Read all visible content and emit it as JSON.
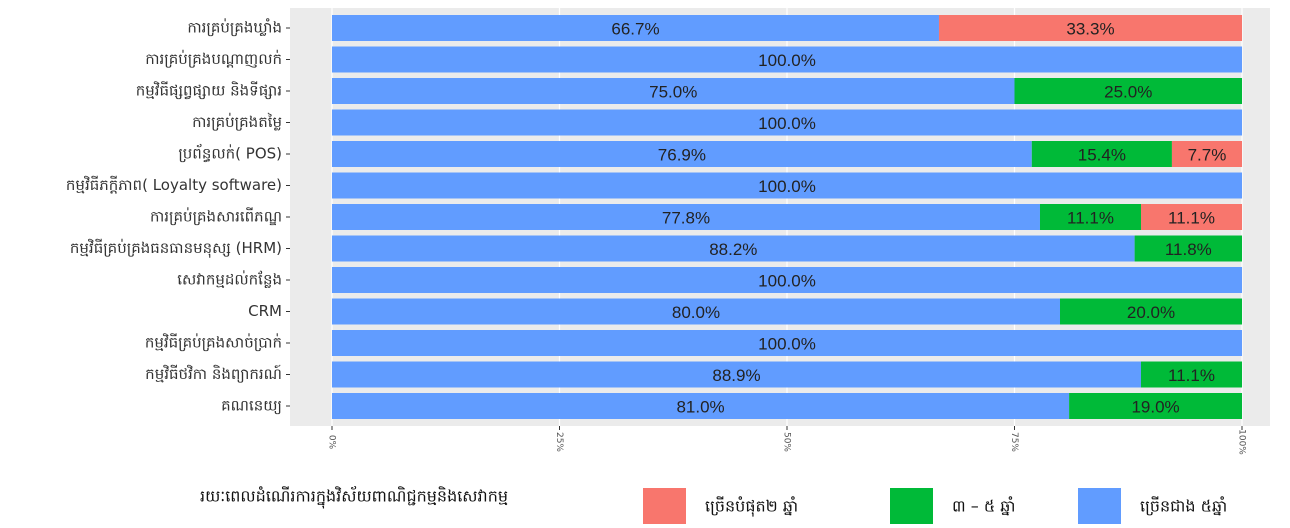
{
  "chart_data": {
    "type": "stacked-barh",
    "categories": [
      "ការគ្រប់គ្រងឃ្លាំង",
      "ការគ្រប់គ្រងបណ្តាញលក់",
      "កម្មវិធីផ្សព្វផ្សាយ និងទីផ្សារ",
      "ការគ្រប់គ្រងតម្លៃ",
      "ប្រព័ន្ធលក់( POS)",
      "កម្មវិធីភក្ដីភាព( Loyalty software)",
      "ការគ្រប់គ្រងសារពើភណ្ឌ",
      "កម្មវិធីគ្រប់គ្រងធនធានមនុស្ស (HRM)",
      "សេវាកម្មដល់កន្លែង",
      "CRM",
      "កម្មវិធីគ្រប់គ្រងសាច់ប្រាក់",
      "កម្មវិធីថវិកា និងព្យាករណ៍",
      "គណនេយ្យ"
    ],
    "legend_title": "រយៈពេលដំណើរការក្នុងវិស័យពាណិជ្ជកម្មនិងសេវាកម្ម",
    "series": [
      {
        "name": "ច្រើនបំផុត២ ឆ្នាំ",
        "color": "#F8766D",
        "values": [
          33.3,
          null,
          null,
          null,
          7.7,
          null,
          11.1,
          null,
          null,
          null,
          null,
          null,
          null
        ],
        "value_labels": [
          "33.3%",
          null,
          null,
          null,
          "7.7%",
          null,
          "11.1%",
          null,
          null,
          null,
          null,
          null,
          null
        ]
      },
      {
        "name": "៣ – ៥ ឆ្នាំ",
        "color": "#00BA38",
        "values": [
          null,
          null,
          25.0,
          null,
          15.4,
          null,
          11.1,
          11.8,
          null,
          20.0,
          null,
          11.1,
          19.0
        ],
        "value_labels": [
          null,
          null,
          "25.0%",
          null,
          "15.4%",
          null,
          "11.1%",
          "11.8%",
          null,
          "20.0%",
          null,
          "11.1%",
          "19.0%"
        ]
      },
      {
        "name": "ច្រើនជាង ៥ឆ្នាំ",
        "color": "#619CFF",
        "values": [
          66.7,
          100.0,
          75.0,
          100.0,
          76.9,
          100.0,
          77.8,
          88.2,
          100.0,
          80.0,
          100.0,
          88.9,
          81.0
        ],
        "value_labels": [
          "66.7%",
          "100.0%",
          "75.0%",
          "100.0%",
          "76.9%",
          "100.0%",
          "77.8%",
          "88.2%",
          "100.0%",
          "80.0%",
          "100.0%",
          "88.9%",
          "81.0%"
        ]
      }
    ],
    "stack_order": [
      2,
      1,
      0
    ],
    "xlim": [
      0,
      100
    ],
    "xticks": [
      {
        "value": 0,
        "label": "0%"
      },
      {
        "value": 25,
        "label": "25%"
      },
      {
        "value": 50,
        "label": "50%"
      },
      {
        "value": 75,
        "label": "75%"
      },
      {
        "value": 100,
        "label": "100%"
      }
    ],
    "grid": true
  }
}
